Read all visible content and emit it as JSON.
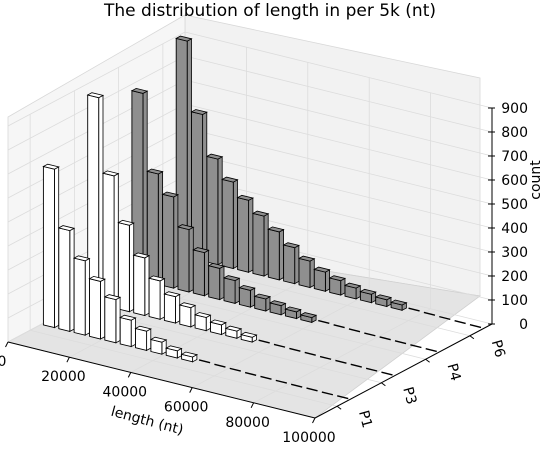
{
  "chart_data": {
    "type": "bar",
    "projection": "3d",
    "title": "The distribution of length in per 5k (nt)",
    "xlabel": "length (nt)",
    "zlabel": "count",
    "x_ticks": [
      "0",
      "20000",
      "40000",
      "60000",
      "80000",
      "100000"
    ],
    "y_ticks": [
      "P1",
      "P3",
      "P4",
      "P6"
    ],
    "z_ticks": [
      "0",
      "100",
      "200",
      "300",
      "400",
      "500",
      "600",
      "700",
      "800",
      "900"
    ],
    "xlim": [
      0,
      100000
    ],
    "zlim": [
      0,
      900
    ],
    "bin_width": 5000,
    "grid": true,
    "series": [
      {
        "name": "P1",
        "color": "#ffffff",
        "values": [
          660,
          420,
          310,
          240,
          180,
          110,
          80,
          50,
          30,
          20,
          15,
          10,
          8,
          5,
          4,
          3,
          2,
          2,
          1,
          1
        ]
      },
      {
        "name": "P3",
        "color": "#ffffff",
        "values": [
          860,
          550,
          360,
          240,
          160,
          110,
          80,
          55,
          40,
          30,
          20,
          15,
          12,
          10,
          8,
          6,
          5,
          4,
          3,
          2
        ]
      },
      {
        "name": "P4",
        "color": "#8f8f8f",
        "values": [
          780,
          460,
          380,
          260,
          180,
          130,
          95,
          70,
          50,
          38,
          28,
          20,
          15,
          11,
          8,
          6,
          5,
          4,
          3,
          2
        ]
      },
      {
        "name": "P6",
        "color": "#8f8f8f",
        "values": [
          920,
          610,
          440,
          360,
          300,
          250,
          200,
          150,
          110,
          80,
          60,
          45,
          35,
          28,
          22,
          17,
          13,
          10,
          8,
          6
        ]
      }
    ]
  }
}
